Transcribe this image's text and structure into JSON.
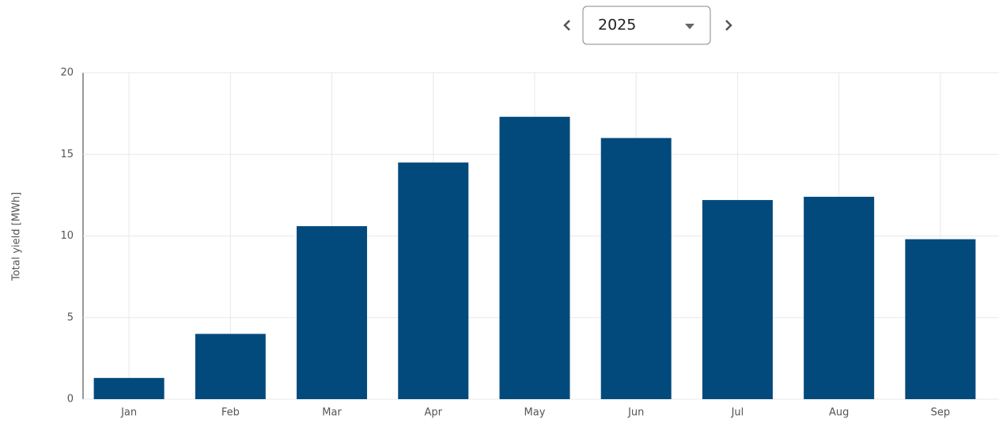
{
  "controls": {
    "year": "2025"
  },
  "chart_data": {
    "type": "bar",
    "y_label": "Total yield [MWh]",
    "categories": [
      "Jan",
      "Feb",
      "Mar",
      "Apr",
      "May",
      "Jun",
      "Jul",
      "Aug",
      "Sep"
    ],
    "values": [
      1.3,
      4.0,
      10.6,
      14.5,
      17.3,
      16.0,
      12.2,
      12.4,
      9.8
    ],
    "color": "#024a7c",
    "ylim": [
      0,
      20
    ],
    "yticks": [
      0,
      5,
      10,
      15,
      20
    ],
    "grid": true
  }
}
